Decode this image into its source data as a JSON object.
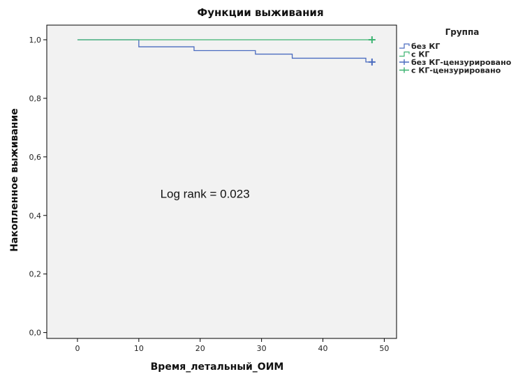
{
  "chart_data": {
    "type": "line",
    "step": true,
    "title": "Функции выживания",
    "xlabel": "Время_летальный_ОИМ",
    "ylabel": "Накопленное выживание",
    "xlim": [
      -5,
      52
    ],
    "ylim": [
      -0.02,
      1.05
    ],
    "xticks": [
      0,
      10,
      20,
      30,
      40,
      50
    ],
    "yticks": [
      0.0,
      0.2,
      0.4,
      0.6,
      0.8,
      1.0
    ],
    "xtick_labels": [
      "0",
      "10",
      "20",
      "30",
      "40",
      "50"
    ],
    "ytick_labels": [
      "0,0",
      "0,2",
      "0,4",
      "0,6",
      "0,8",
      "1,0"
    ],
    "grid": false,
    "background": "#f2f2f2",
    "legend": {
      "title": "Группа",
      "placement": "right",
      "entries": [
        {
          "label": "без КГ",
          "kind": "step",
          "color": "#4a6bbf"
        },
        {
          "label": "с КГ",
          "kind": "step",
          "color": "#3cb371"
        },
        {
          "label": "без КГ-цензурировано",
          "kind": "censor",
          "color": "#4a6bbf"
        },
        {
          "label": "с КГ-цензурировано",
          "kind": "censor",
          "color": "#3cb371"
        }
      ]
    },
    "series": [
      {
        "name": "без КГ",
        "color": "#4a6bbf",
        "x": [
          0,
          10,
          19,
          29,
          35,
          47,
          48
        ],
        "y": [
          1.0,
          0.976,
          0.963,
          0.951,
          0.937,
          0.924,
          0.924
        ],
        "censored": [
          {
            "x": 48,
            "y": 0.924
          }
        ]
      },
      {
        "name": "с КГ",
        "color": "#3cb371",
        "x": [
          0,
          48
        ],
        "y": [
          1.0,
          1.0
        ],
        "censored": [
          {
            "x": 48,
            "y": 1.0
          }
        ]
      }
    ],
    "annotations": [
      {
        "text": "Log rank = 0.023",
        "x": 13.5,
        "y": 0.46
      }
    ]
  }
}
